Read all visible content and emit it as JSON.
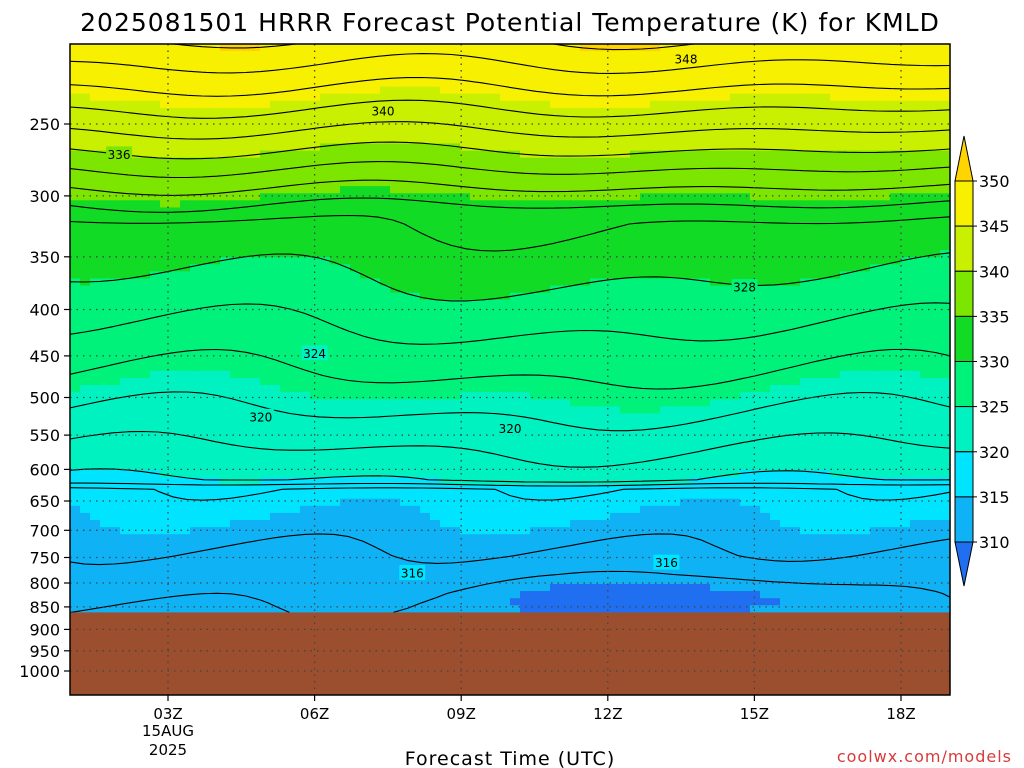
{
  "chart_data": {
    "type": "heatmap",
    "title": "2025081501 HRRR Forecast Potential Temperature (K) for KMLD",
    "xlabel": "Forecast Time (UTC)",
    "ylabel": "",
    "x_ticks": [
      {
        "hour": 3,
        "label": "03Z"
      },
      {
        "hour": 6,
        "label": "06Z"
      },
      {
        "hour": 9,
        "label": "09Z"
      },
      {
        "hour": 12,
        "label": "12Z"
      },
      {
        "hour": 15,
        "label": "15Z"
      },
      {
        "hour": 18,
        "label": "18Z"
      }
    ],
    "x_date_label": [
      "15AUG",
      "2025"
    ],
    "xlim": [
      1,
      19
    ],
    "y_ticks": [
      250,
      300,
      350,
      400,
      450,
      500,
      550,
      600,
      650,
      700,
      750,
      800,
      850,
      900,
      950,
      1000
    ],
    "y_scale": "log",
    "ylim": [
      1000,
      200
    ],
    "ground_pressure_hPa": 862,
    "colorbar": {
      "ticks": [
        310,
        315,
        320,
        325,
        330,
        335,
        340,
        345,
        350
      ],
      "colors": [
        "#1f6ff0",
        "#10b2f6",
        "#00e4ff",
        "#00f2c0",
        "#00f27a",
        "#12db26",
        "#7ce600",
        "#c8f000",
        "#f7f000",
        "#ffd400"
      ],
      "extend": "both"
    },
    "contour_interval": 2,
    "contour_labels": [
      {
        "value": 348,
        "hour": 13.6,
        "pressure": 212
      },
      {
        "value": 340,
        "hour": 7.4,
        "pressure": 242
      },
      {
        "value": 336,
        "hour": 2.0,
        "pressure": 270
      },
      {
        "value": 328,
        "hour": 14.8,
        "pressure": 378
      },
      {
        "value": 324,
        "hour": 6.0,
        "pressure": 447
      },
      {
        "value": 320,
        "hour": 4.9,
        "pressure": 525
      },
      {
        "value": 320,
        "hour": 10.0,
        "pressure": 541
      },
      {
        "value": 316,
        "hour": 8.0,
        "pressure": 780
      },
      {
        "value": 316,
        "hour": 13.2,
        "pressure": 760
      }
    ],
    "grid": "dotted",
    "colors": {
      "ground": "#9c4f2e",
      "contour": "#000000",
      "grid": "#444444"
    }
  },
  "credit": "coolwx.com/models"
}
